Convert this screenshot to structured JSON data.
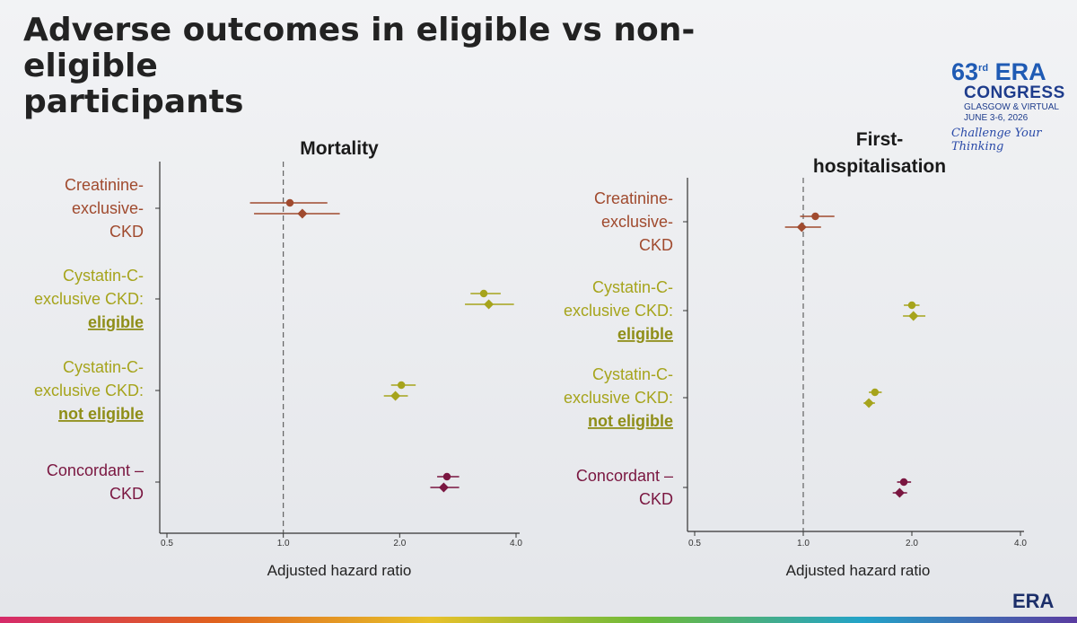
{
  "slide": {
    "title_line1": "Adverse outcomes in eligible vs non-eligible",
    "title_line2": "participants"
  },
  "logo": {
    "number": "63",
    "sup": "rd",
    "era": "ERA",
    "congress": "CONGRESS",
    "location": "GLASGOW & VIRTUAL",
    "dates": "JUNE 3-6, 2026",
    "tagline": "Challenge Your Thinking",
    "footer_logo": "ERA"
  },
  "colors": {
    "creatinine": "#a04a2e",
    "cystatin": "#a6a41c",
    "concordant": "#7a1640",
    "axis": "#333333",
    "eligible_text": "#8f8e18"
  },
  "chart_data": [
    {
      "type": "scatter",
      "subtype": "forest-plot",
      "title": "Mortality",
      "xlabel": "Adjusted hazard ratio",
      "x_scale": "log",
      "xticks": [
        0.5,
        1.0,
        2.0,
        4.0
      ],
      "xtick_labels": [
        "0.5",
        "1.0",
        "2.0",
        "4.0"
      ],
      "reference_line": 1.0,
      "groups": [
        {
          "label_lines": [
            "Creatinine-",
            "exclusive-",
            "CKD"
          ],
          "underline": [],
          "color_key": "creatinine",
          "points": [
            {
              "marker": "circle",
              "hr": 1.04,
              "lo": 0.82,
              "hi": 1.3
            },
            {
              "marker": "diamond",
              "hr": 1.12,
              "lo": 0.84,
              "hi": 1.4
            }
          ]
        },
        {
          "label_lines": [
            "Cystatin-C-",
            "exclusive CKD:",
            "eligible"
          ],
          "underline": [
            "eligible"
          ],
          "color_key": "cystatin",
          "points": [
            {
              "marker": "circle",
              "hr": 3.3,
              "lo": 3.05,
              "hi": 3.65
            },
            {
              "marker": "diamond",
              "hr": 3.4,
              "lo": 2.95,
              "hi": 3.95
            }
          ]
        },
        {
          "label_lines": [
            "Cystatin-C-",
            "exclusive CKD:",
            "not eligible"
          ],
          "underline": [
            "eligible"
          ],
          "color_key": "cystatin",
          "points": [
            {
              "marker": "circle",
              "hr": 2.02,
              "lo": 1.9,
              "hi": 2.2
            },
            {
              "marker": "diamond",
              "hr": 1.95,
              "lo": 1.82,
              "hi": 2.1
            }
          ]
        },
        {
          "label_lines": [
            "Concordant –",
            "CKD"
          ],
          "underline": [],
          "color_key": "concordant",
          "points": [
            {
              "marker": "circle",
              "hr": 2.65,
              "lo": 2.5,
              "hi": 2.85
            },
            {
              "marker": "diamond",
              "hr": 2.6,
              "lo": 2.4,
              "hi": 2.85
            }
          ]
        }
      ]
    },
    {
      "type": "scatter",
      "subtype": "forest-plot",
      "title": "First-hospitalisation",
      "title_lines": [
        "First-",
        "hospitalisation"
      ],
      "xlabel": "Adjusted hazard ratio",
      "x_scale": "log",
      "xticks": [
        0.5,
        1.0,
        2.0,
        4.0
      ],
      "xtick_labels": [
        "0.5",
        "1.0",
        "2.0",
        "4.0"
      ],
      "reference_line": 1.0,
      "groups": [
        {
          "label_lines": [
            "Creatinine-",
            "exclusive-",
            "CKD"
          ],
          "underline": [],
          "color_key": "creatinine",
          "points": [
            {
              "marker": "circle",
              "hr": 1.08,
              "lo": 0.98,
              "hi": 1.22
            },
            {
              "marker": "diamond",
              "hr": 0.99,
              "lo": 0.89,
              "hi": 1.12
            }
          ]
        },
        {
          "label_lines": [
            "Cystatin-C-",
            "exclusive CKD:",
            "eligible"
          ],
          "underline": [
            "eligible"
          ],
          "color_key": "cystatin",
          "points": [
            {
              "marker": "circle",
              "hr": 2.0,
              "lo": 1.9,
              "hi": 2.1
            },
            {
              "marker": "diamond",
              "hr": 2.02,
              "lo": 1.89,
              "hi": 2.18
            }
          ]
        },
        {
          "label_lines": [
            "Cystatin-C-",
            "exclusive CKD:",
            "not eligible"
          ],
          "underline": [
            "eligible"
          ],
          "color_key": "cystatin",
          "points": [
            {
              "marker": "circle",
              "hr": 1.58,
              "lo": 1.52,
              "hi": 1.65
            },
            {
              "marker": "diamond",
              "hr": 1.52,
              "lo": 1.47,
              "hi": 1.58
            }
          ]
        },
        {
          "label_lines": [
            "Concordant –",
            "CKD"
          ],
          "underline": [],
          "color_key": "concordant",
          "points": [
            {
              "marker": "circle",
              "hr": 1.9,
              "lo": 1.82,
              "hi": 1.99
            },
            {
              "marker": "diamond",
              "hr": 1.85,
              "lo": 1.77,
              "hi": 1.94
            }
          ]
        }
      ]
    }
  ]
}
